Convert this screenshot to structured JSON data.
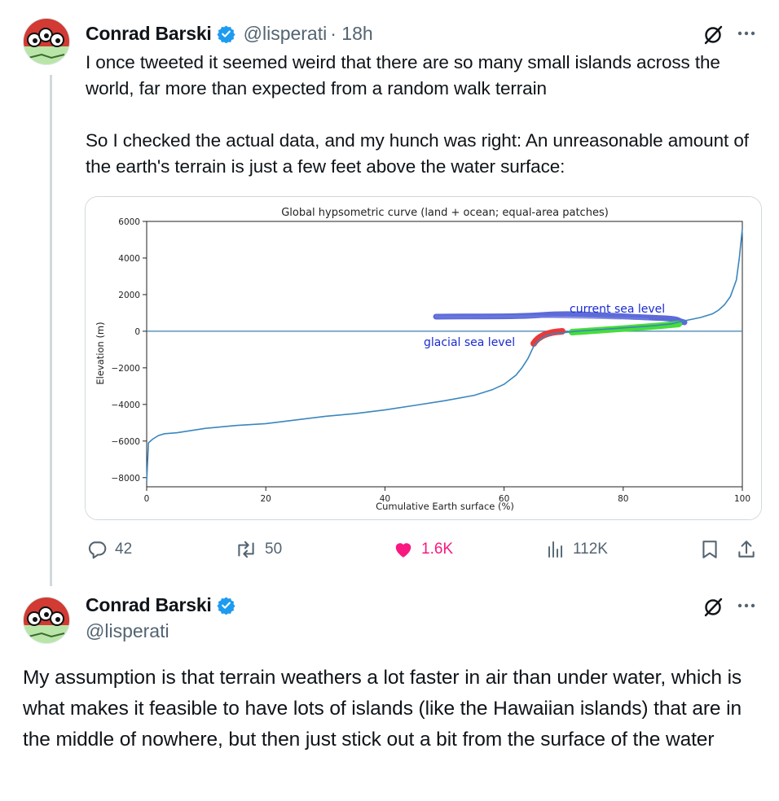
{
  "tweet1": {
    "author_name": "Conrad Barski",
    "author_handle": "@lisperati",
    "time": "· 18h",
    "text": "I once tweeted it seemed weird that there are so many small islands across the world, far more than expected from a random walk terrain\n\nSo I checked the actual data, and my hunch was right: An unreasonable amount of the earth's terrain is just a few feet above the water surface:",
    "actions": {
      "replies": "42",
      "reposts": "50",
      "likes": "1.6K",
      "views": "112K"
    }
  },
  "tweet2": {
    "author_name": "Conrad Barski",
    "author_handle": "@lisperati",
    "text": "My assumption is that terrain weathers a lot faster in air than under water, which is what makes it feasible to have lots of islands (like the Hawaiian islands) that are in the middle of nowhere, but then just stick out a bit from the surface of the water"
  },
  "icons": {
    "avatar": "cartoon-eyes-avatar",
    "verified": "verified-badge-icon",
    "grok": "grok-icon",
    "more": "more-dots-icon",
    "reply": "reply-icon",
    "repost": "repost-icon",
    "like": "heart-icon",
    "views": "views-chart-icon",
    "bookmark": "bookmark-icon",
    "share": "share-icon"
  },
  "colors": {
    "verified": "#1d9bf0",
    "like": "#f91880",
    "muted": "#536471",
    "curve": "#1f77b4",
    "glacial_mark": "#e83a3a",
    "current_mark": "#47dd3a",
    "sea_level_scribble": "#4a5bd4"
  },
  "chart_data": {
    "type": "line",
    "title": "Global hypsometric curve (land + ocean; equal-area patches)",
    "xlabel": "Cumulative Earth surface (%)",
    "ylabel": "Elevation (m)",
    "xlim": [
      0,
      100
    ],
    "ylim": [
      -8500,
      6000
    ],
    "xticks": [
      0,
      20,
      40,
      60,
      80,
      100
    ],
    "yticks": [
      6000,
      4000,
      2000,
      0,
      -2000,
      -4000,
      -6000,
      -8000
    ],
    "ytick_labels": [
      "6000",
      "4000",
      "2000",
      "0",
      "−2000",
      "−4000",
      "−6000",
      "−8000"
    ],
    "grid": false,
    "x": [
      0,
      0.3,
      1,
      2,
      3,
      5,
      8,
      10,
      15,
      20,
      25,
      30,
      35,
      40,
      45,
      50,
      55,
      58,
      60,
      62,
      63,
      64,
      65,
      66,
      67,
      68,
      70,
      72,
      75,
      80,
      85,
      88,
      90,
      93,
      95,
      96,
      97,
      98,
      99,
      99.5,
      100
    ],
    "y": [
      -8200,
      -6100,
      -5900,
      -5700,
      -5600,
      -5550,
      -5400,
      -5300,
      -5150,
      -5050,
      -4850,
      -4650,
      -4500,
      -4300,
      -4050,
      -3800,
      -3500,
      -3200,
      -2900,
      -2400,
      -2000,
      -1500,
      -800,
      -450,
      -250,
      -150,
      -80,
      0,
      60,
      180,
      300,
      400,
      550,
      750,
      950,
      1150,
      1450,
      1900,
      2800,
      4000,
      5600
    ],
    "hline": 0,
    "annotations": [
      {
        "label": "current sea level",
        "color": "#1a2bd0"
      },
      {
        "label": "glacial sea level",
        "color": "#1a2bd0"
      }
    ]
  }
}
